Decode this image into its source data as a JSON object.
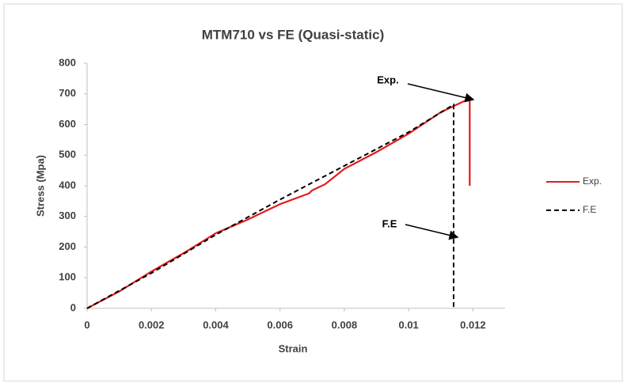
{
  "chart_data": {
    "type": "line",
    "title": "MTM710 vs FE (Quasi-static)",
    "x_label": "Strain",
    "y_label": "Stress (Mpa)",
    "xlim": [
      0,
      0.013
    ],
    "xticks": [
      0,
      0.002,
      0.004,
      0.006,
      0.008,
      0.01,
      0.012
    ],
    "ylim": [
      0,
      800
    ],
    "yticks": [
      0,
      100,
      200,
      300,
      400,
      500,
      600,
      700,
      800
    ],
    "grid": false,
    "legend": "right",
    "series": [
      {
        "name": "Exp.",
        "color": "#e41a1c",
        "dash": false,
        "x": [
          0,
          0.001,
          0.002,
          0.003,
          0.004,
          0.005,
          0.006,
          0.0069,
          0.007,
          0.0074,
          0.008,
          0.009,
          0.01,
          0.011,
          0.0119,
          0.0119
        ],
        "values": [
          0,
          55,
          120,
          180,
          245,
          290,
          340,
          375,
          385,
          405,
          455,
          510,
          570,
          640,
          685,
          400
        ]
      },
      {
        "name": "F.E",
        "color": "#000000",
        "dash": true,
        "x": [
          0,
          0.002,
          0.004,
          0.006,
          0.008,
          0.01,
          0.0114,
          0.0114
        ],
        "values": [
          0,
          115,
          240,
          355,
          465,
          575,
          665,
          0
        ]
      }
    ],
    "annotations": [
      {
        "text": "Exp."
      },
      {
        "text": "F.E"
      }
    ]
  }
}
